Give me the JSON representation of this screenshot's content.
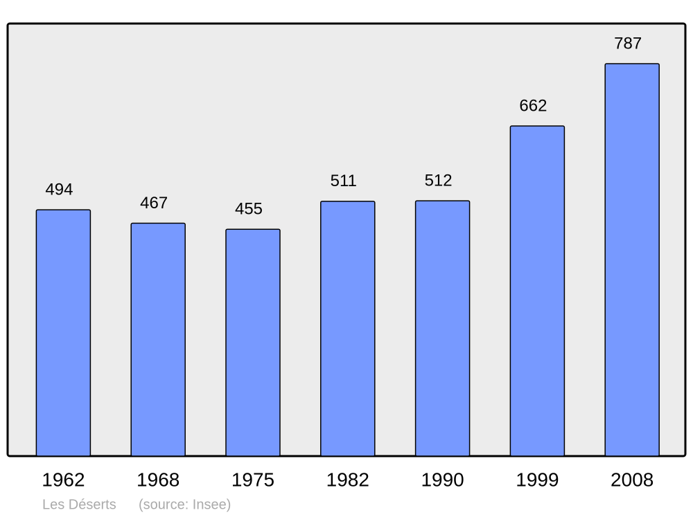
{
  "chart_data": {
    "type": "bar",
    "categories": [
      "1962",
      "1968",
      "1975",
      "1982",
      "1990",
      "1999",
      "2008"
    ],
    "values": [
      494,
      467,
      455,
      511,
      512,
      662,
      787
    ],
    "color": "#7799ff",
    "background": "#ececec",
    "place": "Les Déserts",
    "source": "(source: Insee)"
  }
}
